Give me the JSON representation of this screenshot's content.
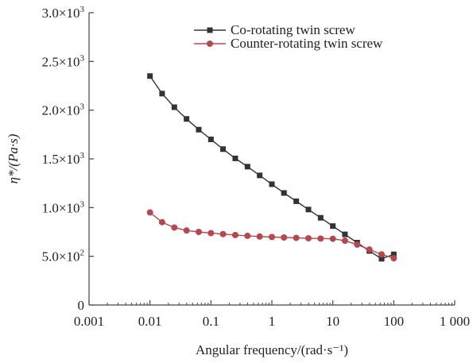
{
  "chart_data": {
    "type": "line",
    "x_scale": "log",
    "xlabel": "Angular frequency/(rad·s⁻¹)",
    "ylabel_main": "η*/(Pa·s)",
    "xlim": [
      0.001,
      1000
    ],
    "ylim": [
      0,
      3000
    ],
    "x_ticks": [
      {
        "value": 0.001,
        "label": "0.001"
      },
      {
        "value": 0.01,
        "label": "0.01"
      },
      {
        "value": 0.1,
        "label": "0.1"
      },
      {
        "value": 1,
        "label": "1"
      },
      {
        "value": 10,
        "label": "10"
      },
      {
        "value": 100,
        "label": "100"
      },
      {
        "value": 1000,
        "label": "1 000"
      }
    ],
    "y_ticks": [
      {
        "value": 0,
        "mant": "0",
        "exp": ""
      },
      {
        "value": 500,
        "mant": "5.0×10",
        "exp": "2"
      },
      {
        "value": 1000,
        "mant": "1.0×10",
        "exp": "3"
      },
      {
        "value": 1500,
        "mant": "1.5×10",
        "exp": "3"
      },
      {
        "value": 2000,
        "mant": "2.0×10",
        "exp": "3"
      },
      {
        "value": 2500,
        "mant": "2.5×10",
        "exp": "3"
      },
      {
        "value": 3000,
        "mant": "3.0×10",
        "exp": "3"
      }
    ],
    "legend_position": "top-right",
    "grid": false,
    "series": [
      {
        "name": "Co-rotating twin screw",
        "color": "#333333",
        "marker": "square",
        "x": [
          0.01,
          0.0158,
          0.0251,
          0.0398,
          0.0631,
          0.1,
          0.158,
          0.251,
          0.398,
          0.631,
          1,
          1.58,
          2.51,
          3.98,
          6.31,
          10,
          15.8,
          25.1,
          39.8,
          63.1,
          100
        ],
        "y": [
          2350,
          2170,
          2030,
          1910,
          1800,
          1700,
          1600,
          1505,
          1420,
          1330,
          1240,
          1150,
          1065,
          980,
          895,
          810,
          725,
          640,
          555,
          475,
          520
        ]
      },
      {
        "name": "Counter-rotating twin screw",
        "color": "#b5474f",
        "marker": "circle",
        "x": [
          0.01,
          0.0158,
          0.0251,
          0.0398,
          0.0631,
          0.1,
          0.158,
          0.251,
          0.398,
          0.631,
          1,
          1.58,
          2.51,
          3.98,
          6.31,
          10,
          15.8,
          25.1,
          39.8,
          63.1,
          100
        ],
        "y": [
          950,
          850,
          795,
          765,
          750,
          738,
          728,
          718,
          710,
          703,
          698,
          693,
          689,
          685,
          682,
          680,
          660,
          620,
          570,
          520,
          480
        ]
      }
    ]
  }
}
